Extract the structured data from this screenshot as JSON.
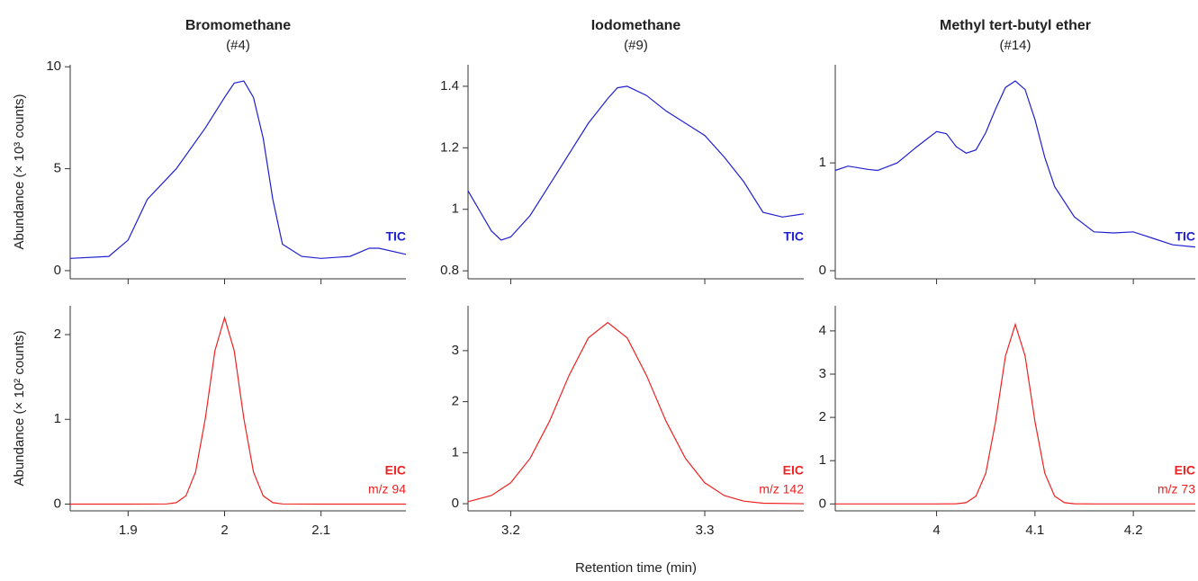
{
  "chart_data": [
    {
      "type": "line",
      "title": "Bromomethane",
      "subtitle": "(#4)",
      "y_label": "Abundance (× 10³ counts)",
      "x": [
        1.84,
        1.88,
        1.9,
        1.92,
        1.95,
        1.98,
        2.0,
        2.01,
        2.02,
        2.03,
        2.04,
        2.05,
        2.06,
        2.08,
        2.1,
        2.13,
        2.15,
        2.16,
        2.188
      ],
      "series": [
        {
          "name": "TIC",
          "color": "#2020d0",
          "values": [
            0.6,
            0.7,
            1.5,
            3.5,
            5.0,
            7.0,
            8.5,
            9.2,
            9.3,
            8.5,
            6.5,
            3.5,
            1.3,
            0.7,
            0.6,
            0.7,
            1.1,
            1.1,
            0.8
          ]
        }
      ],
      "xlim": [
        1.84,
        2.188
      ],
      "ylim": [
        -0.4,
        10.1
      ],
      "yticks": [
        0,
        5,
        10
      ],
      "xticks": [
        1.9,
        2.0,
        2.1
      ],
      "show_xtick_labels": false,
      "annotations": [
        "TIC"
      ]
    },
    {
      "type": "line",
      "title": "Iodomethane",
      "subtitle": "(#9)",
      "x": [
        3.178,
        3.19,
        3.195,
        3.2,
        3.21,
        3.22,
        3.24,
        3.25,
        3.255,
        3.26,
        3.27,
        3.28,
        3.3,
        3.31,
        3.32,
        3.33,
        3.34,
        3.351
      ],
      "series": [
        {
          "name": "TIC",
          "color": "#2020d0",
          "values": [
            1.06,
            0.93,
            0.9,
            0.91,
            0.98,
            1.08,
            1.28,
            1.36,
            1.395,
            1.4,
            1.37,
            1.32,
            1.24,
            1.17,
            1.09,
            0.99,
            0.975,
            0.985
          ]
        }
      ],
      "xlim": [
        3.178,
        3.351
      ],
      "ylim": [
        0.774,
        1.47
      ],
      "yticks": [
        0.8,
        1,
        1.2,
        1.4
      ],
      "xticks": [
        3.2,
        3.3
      ],
      "show_xtick_labels": false,
      "annotations": [
        "TIC"
      ]
    },
    {
      "type": "line",
      "title": "Methyl tert-butyl ether",
      "subtitle": "(#14)",
      "x": [
        3.897,
        3.91,
        3.93,
        3.94,
        3.96,
        3.98,
        4.0,
        4.01,
        4.02,
        4.03,
        4.04,
        4.05,
        4.06,
        4.07,
        4.08,
        4.09,
        4.1,
        4.11,
        4.12,
        4.14,
        4.16,
        4.18,
        4.2,
        4.22,
        4.24,
        4.263
      ],
      "series": [
        {
          "name": "TIC",
          "color": "#2020d0",
          "values": [
            0.93,
            0.97,
            0.94,
            0.93,
            1.0,
            1.15,
            1.29,
            1.27,
            1.15,
            1.09,
            1.12,
            1.28,
            1.5,
            1.7,
            1.76,
            1.68,
            1.4,
            1.05,
            0.78,
            0.5,
            0.36,
            0.35,
            0.36,
            0.3,
            0.24,
            0.22
          ]
        }
      ],
      "xlim": [
        3.897,
        4.263
      ],
      "ylim": [
        -0.075,
        1.91
      ],
      "yticks": [
        0,
        1
      ],
      "xticks": [
        4.0,
        4.1,
        4.2
      ],
      "show_xtick_labels": false,
      "annotations": [
        "TIC"
      ]
    },
    {
      "type": "line",
      "y_label": "Abundance (× 10² counts)",
      "x": [
        1.84,
        1.9,
        1.94,
        1.95,
        1.96,
        1.97,
        1.98,
        1.99,
        2.0,
        2.01,
        2.02,
        2.03,
        2.04,
        2.05,
        2.06,
        2.1,
        2.188
      ],
      "series": [
        {
          "name": "EIC",
          "color": "#ee2222",
          "values": [
            0,
            0,
            0.002,
            0.017,
            0.097,
            0.38,
            1.01,
            1.81,
            2.2,
            1.81,
            1.01,
            0.38,
            0.097,
            0.017,
            0.002,
            0,
            0
          ]
        }
      ],
      "xlim": [
        1.84,
        2.188
      ],
      "ylim": [
        -0.08,
        2.34
      ],
      "yticks": [
        0,
        1,
        2
      ],
      "xticks": [
        1.9,
        2.0,
        2.1
      ],
      "show_xtick_labels": true,
      "annotations": [
        "EIC",
        "m/z 94"
      ]
    },
    {
      "type": "line",
      "x_label": "Retention time (min)",
      "x": [
        3.178,
        3.19,
        3.2,
        3.21,
        3.22,
        3.23,
        3.24,
        3.25,
        3.26,
        3.27,
        3.28,
        3.29,
        3.3,
        3.31,
        3.32,
        3.33,
        3.351
      ],
      "series": [
        {
          "name": "EIC",
          "color": "#ee2222",
          "values": [
            0.04,
            0.16,
            0.41,
            0.89,
            1.62,
            2.51,
            3.25,
            3.55,
            3.25,
            2.51,
            1.62,
            0.89,
            0.41,
            0.16,
            0.05,
            0.01,
            0
          ]
        }
      ],
      "xlim": [
        3.178,
        3.351
      ],
      "ylim": [
        -0.14,
        3.88
      ],
      "yticks": [
        0,
        1,
        2,
        3
      ],
      "xticks": [
        3.2,
        3.3
      ],
      "show_xtick_labels": true,
      "annotations": [
        "EIC",
        "m/z 142"
      ]
    },
    {
      "type": "line",
      "x": [
        3.897,
        4.0,
        4.02,
        4.03,
        4.04,
        4.05,
        4.06,
        4.07,
        4.08,
        4.09,
        4.1,
        4.11,
        4.12,
        4.13,
        4.14,
        4.16,
        4.263
      ],
      "series": [
        {
          "name": "EIC",
          "color": "#ee2222",
          "values": [
            0,
            0,
            0.004,
            0.03,
            0.18,
            0.71,
            1.9,
            3.42,
            4.15,
            3.42,
            1.9,
            0.71,
            0.18,
            0.03,
            0.004,
            0,
            0
          ]
        }
      ],
      "xlim": [
        3.897,
        4.263
      ],
      "ylim": [
        -0.16,
        4.58
      ],
      "yticks": [
        0,
        1,
        2,
        3,
        4
      ],
      "xticks": [
        4.0,
        4.1,
        4.2
      ],
      "show_xtick_labels": true,
      "annotations": [
        "EIC",
        "m/z 73"
      ]
    }
  ]
}
